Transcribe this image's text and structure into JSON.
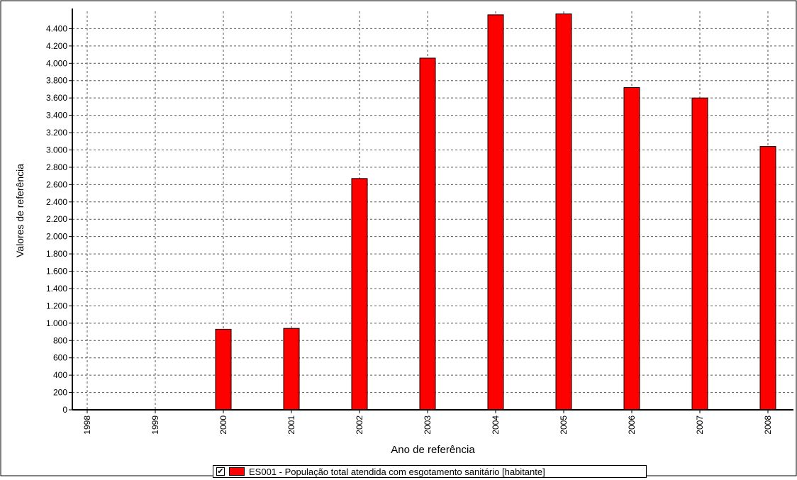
{
  "chart_data": {
    "type": "bar",
    "categories": [
      "1998",
      "1999",
      "2000",
      "2001",
      "2002",
      "2003",
      "2004",
      "2005",
      "2006",
      "2007",
      "2008"
    ],
    "series": [
      {
        "name": "ES001 - População total atendida com esgotamento sanitário [habitante]",
        "values": [
          0,
          0,
          930,
          940,
          2670,
          4060,
          4560,
          4570,
          3720,
          3600,
          3040
        ],
        "color": "#ff0000"
      }
    ],
    "xlabel": "Ano de referência",
    "ylabel": "Valores de referência",
    "ylim": [
      0,
      4600
    ],
    "yticks": [
      0,
      200,
      400,
      600,
      800,
      1000,
      1200,
      1400,
      1600,
      1800,
      2000,
      2200,
      2400,
      2600,
      2800,
      3000,
      3200,
      3400,
      3600,
      3800,
      4000,
      4200,
      4400
    ],
    "ytick_labels": [
      "0",
      "200",
      "400",
      "600",
      "800",
      "1.000",
      "1.200",
      "1.400",
      "1.600",
      "1.800",
      "2.000",
      "2.200",
      "2.400",
      "2.600",
      "2.800",
      "3.000",
      "3.200",
      "3.400",
      "3.600",
      "3.800",
      "4.000",
      "4.200",
      "4.400"
    ],
    "grid": true,
    "legend": "bottom-center",
    "legend_checked": true
  },
  "legend_check_glyph": "✔"
}
